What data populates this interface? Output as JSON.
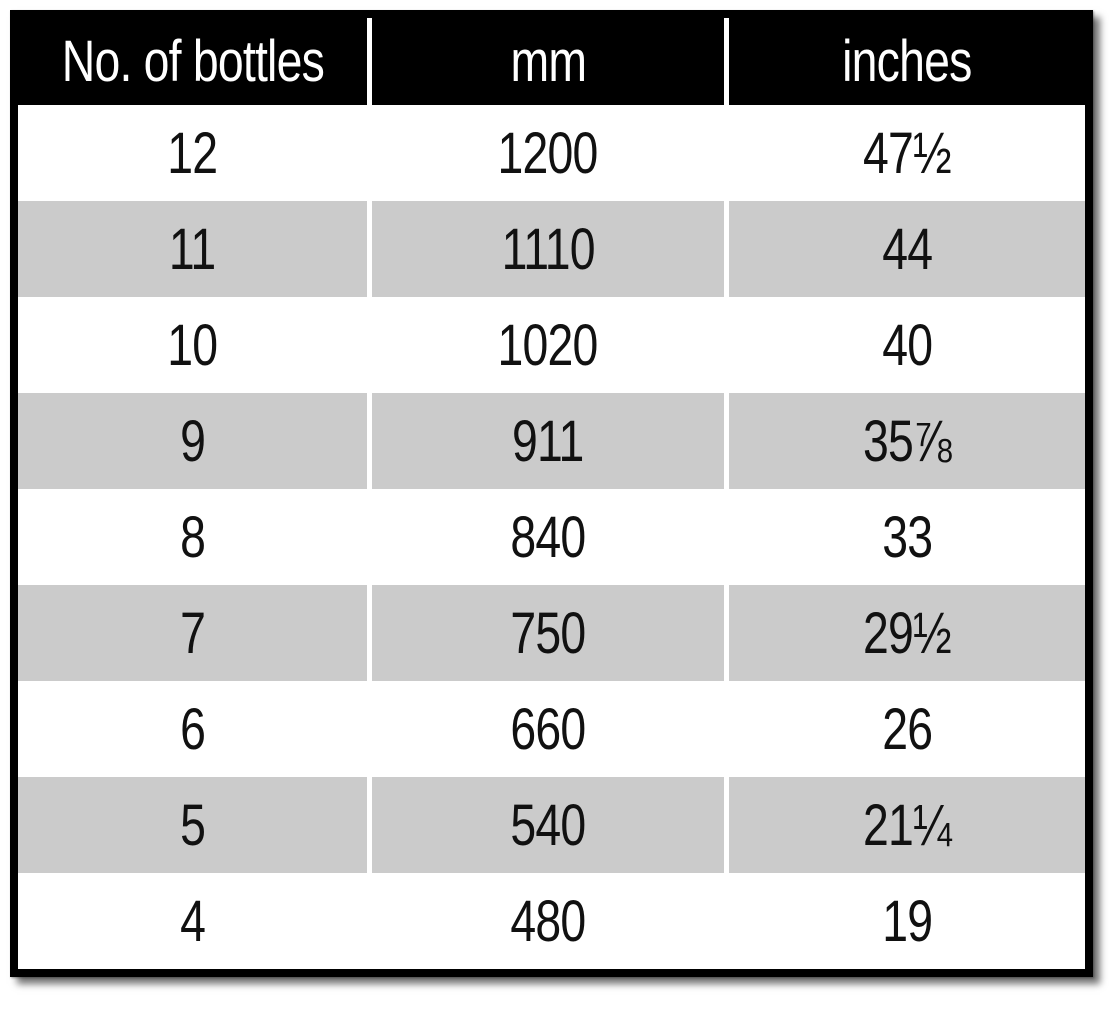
{
  "chart_data": {
    "type": "table",
    "columns": [
      "No. of bottles",
      "mm",
      "inches"
    ],
    "rows": [
      [
        "12",
        "1200",
        "47½"
      ],
      [
        "11",
        "1110",
        "44"
      ],
      [
        "10",
        "1020",
        "40"
      ],
      [
        "9",
        "911",
        "35⅞"
      ],
      [
        "8",
        "840",
        "33"
      ],
      [
        "7",
        "750",
        "29½"
      ],
      [
        "6",
        "660",
        "26"
      ],
      [
        "5",
        "540",
        "21¼"
      ],
      [
        "4",
        "480",
        "19"
      ]
    ],
    "layout": {
      "header_bg": "#000000",
      "header_text": "#ffffff",
      "row_bg": "#ffffff",
      "row_alt_bg": "#cbcbcb",
      "body_text": "#111111",
      "separator_color": "#ffffff",
      "outer_border_color": "#000000"
    }
  }
}
